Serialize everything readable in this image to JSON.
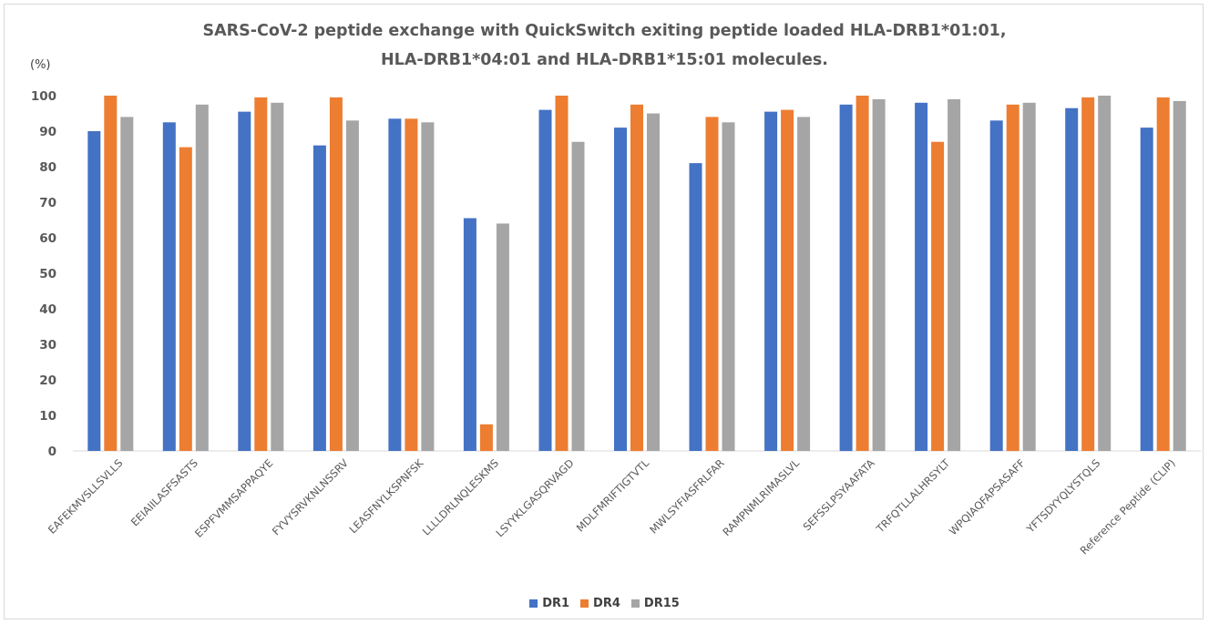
{
  "chart_data": {
    "type": "bar",
    "title_line1": "SARS-CoV-2 peptide exchange with QuickSwitch exiting peptide loaded HLA-DRB1*01:01,",
    "title_line2": "HLA-DRB1*04:01 and HLA-DRB1*15:01 molecules.",
    "unit_label": "(%)",
    "ylim": [
      0,
      100
    ],
    "yticks": [
      0,
      10,
      20,
      30,
      40,
      50,
      60,
      70,
      80,
      90,
      100
    ],
    "grid": false,
    "legend_position": "bottom",
    "categories": [
      "EAFEKMVSLLSVLLS",
      "EEIAIILASFSASTS",
      "ESPFVMMSAPPAQYE",
      "FYVYSRVKNLNSSRV",
      "LEASFNYLKSPNFSK",
      "LLLLDRLNQLESKMS",
      "LSYYKLGASQRVAGD",
      "MDLFMRIFTIGTVTL",
      "MWLSYFIASFRLFAR",
      "RAMPNMLRIMASLVL",
      "SEFSSLPSYAAFATA",
      "TRFQTLLALHRSYLT",
      "WPQIAQFAPSASAFF",
      "YFTSDYYQLYSTQLS",
      "Reference Peptide (CLIP)"
    ],
    "series": [
      {
        "name": "DR1",
        "color": "#4472c4",
        "values": [
          90,
          92.5,
          95.5,
          86,
          93.5,
          65.5,
          96,
          91,
          81,
          95.5,
          97.5,
          98,
          93,
          96.5,
          91
        ]
      },
      {
        "name": "DR4",
        "color": "#ed7d31",
        "values": [
          100,
          85.5,
          99.5,
          99.5,
          93.5,
          7.5,
          100,
          97.5,
          94,
          96,
          100,
          87,
          97.5,
          99.5,
          99.5
        ]
      },
      {
        "name": "DR15",
        "color": "#a5a5a5",
        "values": [
          94,
          97.5,
          98,
          93,
          92.5,
          64,
          87,
          95,
          92.5,
          94,
          99,
          99,
          98,
          100,
          98.5
        ]
      }
    ]
  }
}
